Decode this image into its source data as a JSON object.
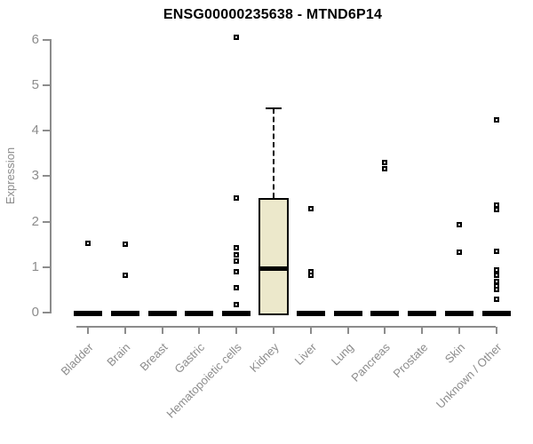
{
  "page": {
    "background": "#ffffff"
  },
  "chart_data": {
    "type": "boxplot",
    "title": "ENSG00000235638 - MTND6P14",
    "ylabel": "Expression",
    "xlabel": "",
    "ylim": [
      0,
      6
    ],
    "yticks": [
      0,
      1,
      2,
      3,
      4,
      5,
      6
    ],
    "grid": false,
    "legend": null,
    "categories": [
      "Bladder",
      "Brain",
      "Breast",
      "Gastric",
      "Hematopoietic cells",
      "Kidney",
      "Liver",
      "Lung",
      "Pancreas",
      "Prostate",
      "Skin",
      "Unknown / Other"
    ],
    "series": [
      {
        "category": "Bladder",
        "q1": 0,
        "median": 0,
        "q3": 0,
        "whisker_low": 0,
        "whisker_high": 0,
        "outliers": [
          1.52
        ]
      },
      {
        "category": "Brain",
        "q1": 0,
        "median": 0,
        "q3": 0,
        "whisker_low": 0,
        "whisker_high": 0,
        "outliers": [
          1.5,
          0.83
        ]
      },
      {
        "category": "Breast",
        "q1": 0,
        "median": 0,
        "q3": 0,
        "whisker_low": 0,
        "whisker_high": 0,
        "outliers": []
      },
      {
        "category": "Gastric",
        "q1": 0,
        "median": 0,
        "q3": 0,
        "whisker_low": 0,
        "whisker_high": 0,
        "outliers": []
      },
      {
        "category": "Hematopoietic cells",
        "q1": 0,
        "median": 0,
        "q3": 0,
        "whisker_low": 0,
        "whisker_high": 0,
        "outliers": [
          6.05,
          2.53,
          1.43,
          1.28,
          1.14,
          0.89,
          0.54,
          0.17
        ]
      },
      {
        "category": "Kidney",
        "q1": 0,
        "median": 0.97,
        "q3": 2.52,
        "whisker_low": 0,
        "whisker_high": 4.5,
        "outliers": []
      },
      {
        "category": "Liver",
        "q1": 0,
        "median": 0,
        "q3": 0,
        "whisker_low": 0,
        "whisker_high": 0,
        "outliers": [
          2.29,
          0.9,
          0.82
        ]
      },
      {
        "category": "Lung",
        "q1": 0,
        "median": 0,
        "q3": 0,
        "whisker_low": 0,
        "whisker_high": 0,
        "outliers": []
      },
      {
        "category": "Pancreas",
        "q1": 0,
        "median": 0,
        "q3": 0,
        "whisker_low": 0,
        "whisker_high": 0,
        "outliers": [
          3.31,
          3.16
        ]
      },
      {
        "category": "Prostate",
        "q1": 0,
        "median": 0,
        "q3": 0,
        "whisker_low": 0,
        "whisker_high": 0,
        "outliers": []
      },
      {
        "category": "Skin",
        "q1": 0,
        "median": 0,
        "q3": 0,
        "whisker_low": 0,
        "whisker_high": 0,
        "outliers": [
          1.93,
          1.33
        ]
      },
      {
        "category": "Unknown / Other",
        "q1": 0,
        "median": 0,
        "q3": 0,
        "whisker_low": 0,
        "whisker_high": 0,
        "outliers": [
          4.24,
          2.36,
          2.26,
          1.34,
          0.93,
          0.83,
          0.68,
          0.59,
          0.51,
          0.3
        ]
      }
    ],
    "colors": {
      "box_fill": "#ECE8CB",
      "box_border": "#000000",
      "median": "#000000",
      "outlier_border": "#000000",
      "outlier_fill": "#ffffff",
      "axis": "#8c8c8c",
      "title": "#000000"
    }
  }
}
